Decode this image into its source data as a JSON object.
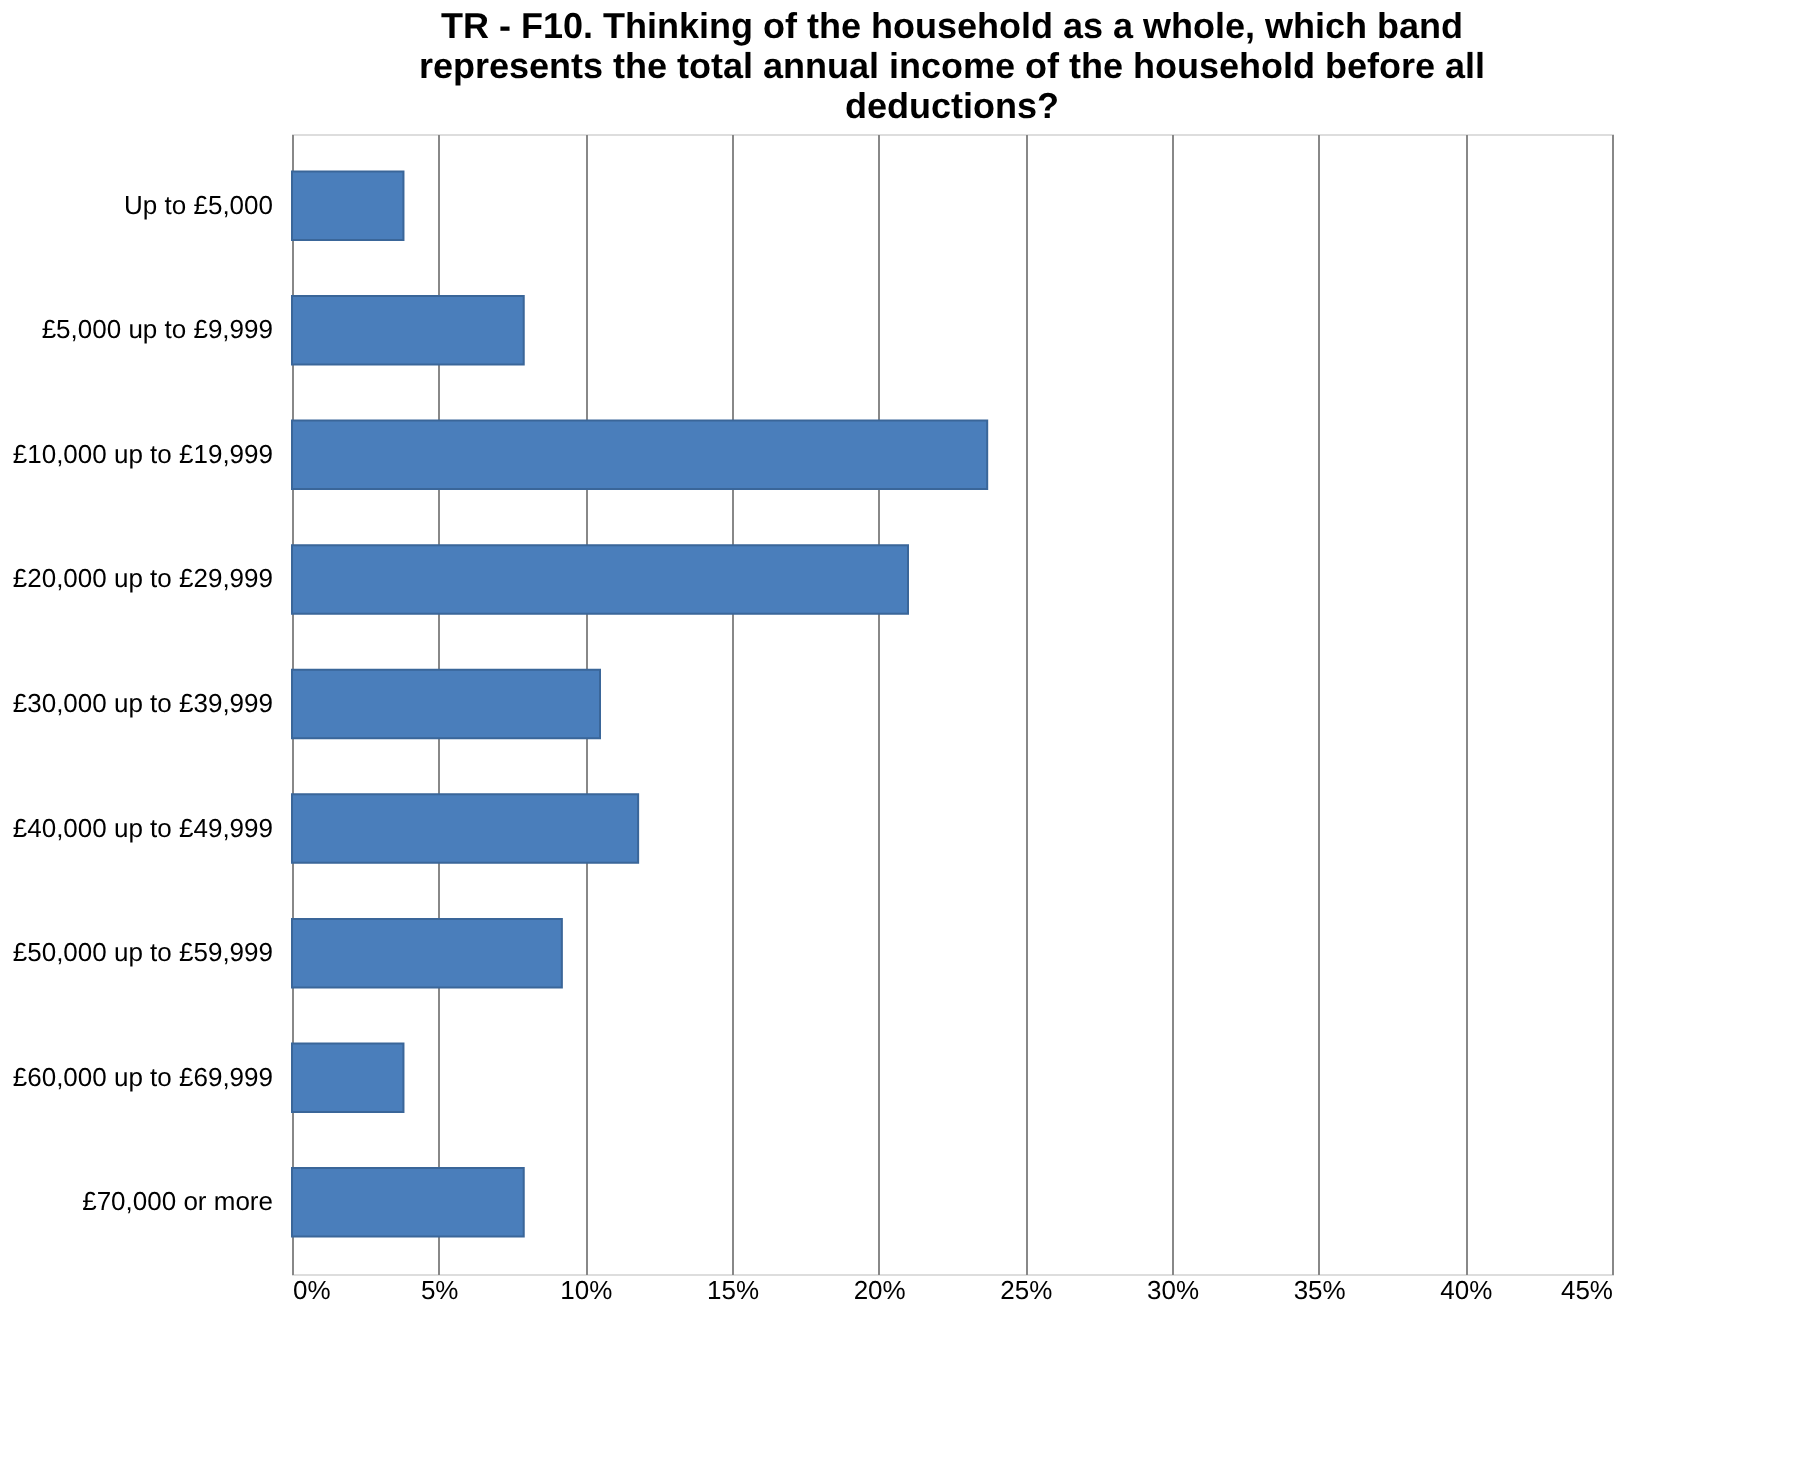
{
  "chart_data": {
    "type": "bar",
    "orientation": "horizontal",
    "title": "TR - F10. Thinking of the household as a whole, which band represents the total annual income of the household before all deductions?",
    "categories": [
      "Up to £5,000",
      "£5,000 up to £9,999",
      "£10,000 up to £19,999",
      "£20,000 up to £29,999",
      "£30,000 up to £39,999",
      "£40,000 up to £49,999",
      "£50,000 up to £59,999",
      "£60,000 up to £69,999",
      "£70,000 or more"
    ],
    "values": [
      3.8,
      7.9,
      23.7,
      21.0,
      10.5,
      11.8,
      9.2,
      3.8,
      7.9
    ],
    "color": "#4a7ebb",
    "xlim": [
      0,
      45
    ],
    "xticks": [
      {
        "value": 0,
        "label": "0%"
      },
      {
        "value": 5,
        "label": "5%"
      },
      {
        "value": 10,
        "label": "10%"
      },
      {
        "value": 15,
        "label": "15%"
      },
      {
        "value": 20,
        "label": "20%"
      },
      {
        "value": 25,
        "label": "25%"
      },
      {
        "value": 30,
        "label": "30%"
      },
      {
        "value": 35,
        "label": "35%"
      },
      {
        "value": 40,
        "label": "40%"
      },
      {
        "value": 45,
        "label": "45%"
      }
    ],
    "grid": "x"
  }
}
